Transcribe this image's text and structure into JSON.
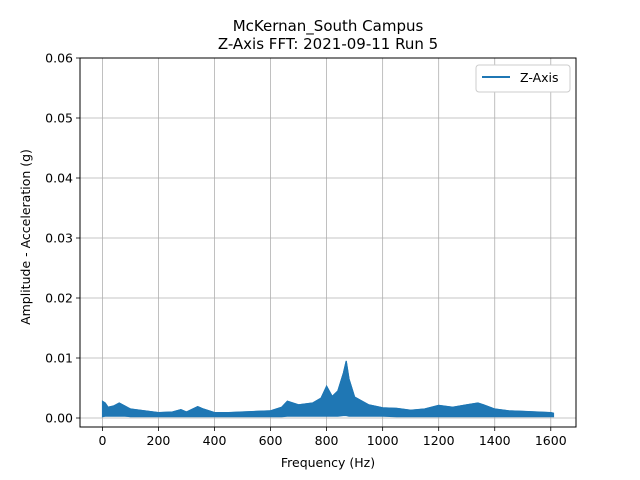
{
  "chart_data": {
    "type": "line",
    "title": "McKernan_South Campus",
    "subtitle": "Z-Axis FFT: 2021-09-11 Run 5",
    "xlabel": "Frequency (Hz)",
    "ylabel": "Amplitude - Acceleration (g)",
    "xlim": [
      -80,
      1690
    ],
    "ylim": [
      -0.0015,
      0.06
    ],
    "xticks": [
      0,
      200,
      400,
      600,
      800,
      1000,
      1200,
      1400,
      1600
    ],
    "yticks": [
      0.0,
      0.01,
      0.02,
      0.03,
      0.04,
      0.05,
      0.06
    ],
    "ytick_labels": [
      "0.00",
      "0.01",
      "0.02",
      "0.03",
      "0.04",
      "0.05",
      "0.06"
    ],
    "grid": true,
    "legend_position": "top-right",
    "series": [
      {
        "name": "Z-Axis",
        "color": "#1f77b4",
        "x": [
          0,
          10,
          20,
          40,
          60,
          80,
          100,
          150,
          200,
          250,
          280,
          300,
          340,
          360,
          400,
          450,
          500,
          550,
          600,
          640,
          660,
          700,
          750,
          780,
          800,
          820,
          840,
          860,
          870,
          880,
          900,
          950,
          1000,
          1050,
          1100,
          1150,
          1200,
          1250,
          1300,
          1340,
          1360,
          1400,
          1450,
          1500,
          1550,
          1600,
          1610
        ],
        "y_max": [
          0.0028,
          0.0025,
          0.0018,
          0.002,
          0.0025,
          0.002,
          0.0015,
          0.0012,
          0.0009,
          0.001,
          0.0014,
          0.001,
          0.0019,
          0.0015,
          0.0009,
          0.0009,
          0.001,
          0.0011,
          0.0012,
          0.0018,
          0.0028,
          0.0022,
          0.0025,
          0.0033,
          0.0053,
          0.0036,
          0.0045,
          0.0075,
          0.0095,
          0.0065,
          0.0035,
          0.0022,
          0.0017,
          0.0016,
          0.0013,
          0.0015,
          0.0021,
          0.0018,
          0.0022,
          0.0025,
          0.0022,
          0.0015,
          0.0012,
          0.0011,
          0.001,
          0.0009,
          0.0008
        ],
        "y_min": [
          0.0002,
          0.0003,
          0.0003,
          0.0003,
          0.0003,
          0.0003,
          0.0002,
          0.0002,
          0.0002,
          0.0002,
          0.0002,
          0.0002,
          0.0002,
          0.0002,
          0.0002,
          0.0002,
          0.0002,
          0.0002,
          0.0002,
          0.0002,
          0.0003,
          0.0003,
          0.0003,
          0.0003,
          0.0003,
          0.0003,
          0.0003,
          0.0004,
          0.0004,
          0.0003,
          0.0003,
          0.0003,
          0.0003,
          0.0002,
          0.0002,
          0.0002,
          0.0002,
          0.0002,
          0.0002,
          0.0002,
          0.0002,
          0.0002,
          0.0002,
          0.0002,
          0.0002,
          0.0002,
          0.0002
        ]
      }
    ]
  }
}
